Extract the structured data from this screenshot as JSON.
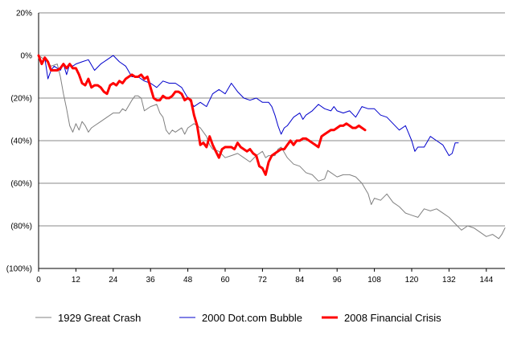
{
  "chart_data": {
    "type": "line",
    "title": "",
    "xlabel": "",
    "ylabel": "",
    "xlim": [
      0,
      150
    ],
    "ylim": [
      -100,
      20
    ],
    "x_ticks": [
      "0",
      "12",
      "24",
      "36",
      "48",
      "60",
      "72",
      "84",
      "96",
      "108",
      "120",
      "132",
      "144"
    ],
    "x_tick_values": [
      0,
      12,
      24,
      36,
      48,
      60,
      72,
      84,
      96,
      108,
      120,
      132,
      144
    ],
    "y_ticks": [
      "20%",
      "0%",
      "(20%)",
      "(40%)",
      "(60%)",
      "(80%)",
      "(100%)"
    ],
    "y_tick_values": [
      20,
      0,
      -20,
      -40,
      -60,
      -80,
      -100
    ],
    "grid": "horizontal",
    "legend_position": "bottom",
    "series": [
      {
        "name": "1929 Great Crash",
        "color": "#808080",
        "width": 1,
        "points": [
          [
            0,
            0
          ],
          [
            2,
            -2
          ],
          [
            4,
            -5
          ],
          [
            6,
            -4
          ],
          [
            7,
            -10
          ],
          [
            8,
            -18
          ],
          [
            9,
            -25
          ],
          [
            10,
            -33
          ],
          [
            11,
            -36
          ],
          [
            12,
            -32
          ],
          [
            13,
            -35
          ],
          [
            14,
            -31
          ],
          [
            15,
            -33
          ],
          [
            16,
            -36
          ],
          [
            17,
            -34
          ],
          [
            18,
            -33
          ],
          [
            20,
            -31
          ],
          [
            22,
            -29
          ],
          [
            24,
            -27
          ],
          [
            26,
            -27
          ],
          [
            27,
            -25
          ],
          [
            28,
            -26
          ],
          [
            30,
            -21
          ],
          [
            31,
            -19
          ],
          [
            32,
            -19
          ],
          [
            33,
            -20
          ],
          [
            34,
            -26
          ],
          [
            36,
            -24
          ],
          [
            38,
            -23
          ],
          [
            39,
            -27
          ],
          [
            40,
            -29
          ],
          [
            41,
            -35
          ],
          [
            42,
            -37
          ],
          [
            43,
            -35
          ],
          [
            44,
            -36
          ],
          [
            46,
            -34
          ],
          [
            47,
            -37
          ],
          [
            48,
            -34
          ],
          [
            50,
            -32
          ],
          [
            52,
            -34
          ],
          [
            54,
            -38
          ],
          [
            55,
            -42
          ],
          [
            56,
            -44
          ],
          [
            58,
            -45
          ],
          [
            60,
            -48
          ],
          [
            62,
            -47
          ],
          [
            64,
            -46
          ],
          [
            66,
            -48
          ],
          [
            68,
            -50
          ],
          [
            70,
            -47
          ],
          [
            72,
            -45
          ],
          [
            73,
            -48
          ],
          [
            74,
            -47
          ],
          [
            76,
            -47
          ],
          [
            77,
            -44
          ],
          [
            78,
            -43
          ],
          [
            80,
            -48
          ],
          [
            82,
            -51
          ],
          [
            84,
            -52
          ],
          [
            86,
            -55
          ],
          [
            88,
            -56
          ],
          [
            90,
            -59
          ],
          [
            92,
            -58
          ],
          [
            93,
            -54
          ],
          [
            94,
            -55
          ],
          [
            96,
            -57
          ],
          [
            98,
            -56
          ],
          [
            100,
            -56
          ],
          [
            102,
            -57
          ],
          [
            104,
            -60
          ],
          [
            106,
            -65
          ],
          [
            107,
            -70
          ],
          [
            108,
            -67
          ],
          [
            110,
            -68
          ],
          [
            112,
            -65
          ],
          [
            114,
            -69
          ],
          [
            116,
            -71
          ],
          [
            118,
            -74
          ],
          [
            120,
            -75
          ],
          [
            122,
            -76
          ],
          [
            124,
            -72
          ],
          [
            126,
            -73
          ],
          [
            128,
            -72
          ],
          [
            130,
            -74
          ],
          [
            132,
            -76
          ],
          [
            134,
            -79
          ],
          [
            136,
            -82
          ],
          [
            138,
            -80
          ],
          [
            140,
            -81
          ],
          [
            142,
            -83
          ],
          [
            144,
            -85
          ],
          [
            146,
            -84
          ],
          [
            148,
            -86
          ],
          [
            149,
            -84
          ],
          [
            150,
            -81
          ]
        ]
      },
      {
        "name": "2000 Dot.com Bubble",
        "color": "#0000cc",
        "width": 1,
        "points": [
          [
            0,
            0
          ],
          [
            1,
            -3
          ],
          [
            2,
            -1
          ],
          [
            3,
            -11
          ],
          [
            4,
            -7
          ],
          [
            5,
            -5
          ],
          [
            6,
            -6
          ],
          [
            7,
            -7
          ],
          [
            8,
            -4
          ],
          [
            9,
            -9
          ],
          [
            10,
            -4
          ],
          [
            11,
            -5
          ],
          [
            12,
            -4
          ],
          [
            14,
            -3
          ],
          [
            16,
            -2
          ],
          [
            18,
            -7
          ],
          [
            20,
            -4
          ],
          [
            22,
            -2
          ],
          [
            23,
            -1
          ],
          [
            24,
            0
          ],
          [
            26,
            -3
          ],
          [
            28,
            -5
          ],
          [
            30,
            -10
          ],
          [
            32,
            -10
          ],
          [
            34,
            -12
          ],
          [
            36,
            -13
          ],
          [
            38,
            -15
          ],
          [
            40,
            -12
          ],
          [
            42,
            -13
          ],
          [
            44,
            -13
          ],
          [
            46,
            -15
          ],
          [
            48,
            -20
          ],
          [
            50,
            -24
          ],
          [
            52,
            -22
          ],
          [
            54,
            -24
          ],
          [
            56,
            -18
          ],
          [
            58,
            -16
          ],
          [
            60,
            -18
          ],
          [
            62,
            -13
          ],
          [
            64,
            -17
          ],
          [
            66,
            -20
          ],
          [
            68,
            -21
          ],
          [
            70,
            -20
          ],
          [
            72,
            -22
          ],
          [
            74,
            -22
          ],
          [
            75,
            -24
          ],
          [
            76,
            -28
          ],
          [
            77,
            -33
          ],
          [
            78,
            -37
          ],
          [
            79,
            -34
          ],
          [
            80,
            -33
          ],
          [
            82,
            -29
          ],
          [
            84,
            -27
          ],
          [
            85,
            -30
          ],
          [
            86,
            -28
          ],
          [
            88,
            -26
          ],
          [
            90,
            -23
          ],
          [
            92,
            -25
          ],
          [
            94,
            -26
          ],
          [
            95,
            -24
          ],
          [
            96,
            -26
          ],
          [
            98,
            -27
          ],
          [
            100,
            -26
          ],
          [
            102,
            -29
          ],
          [
            104,
            -24
          ],
          [
            106,
            -25
          ],
          [
            108,
            -25
          ],
          [
            110,
            -28
          ],
          [
            112,
            -29
          ],
          [
            114,
            -32
          ],
          [
            116,
            -35
          ],
          [
            118,
            -33
          ],
          [
            120,
            -40
          ],
          [
            121,
            -45
          ],
          [
            122,
            -43
          ],
          [
            124,
            -43
          ],
          [
            126,
            -38
          ],
          [
            128,
            -40
          ],
          [
            130,
            -42
          ],
          [
            132,
            -47
          ],
          [
            133,
            -46
          ],
          [
            134,
            -41
          ],
          [
            135,
            -41
          ]
        ]
      },
      {
        "name": "2008 Financial Crisis",
        "color": "#ff0000",
        "width": 3,
        "points": [
          [
            0,
            0
          ],
          [
            1,
            -4
          ],
          [
            2,
            -1
          ],
          [
            3,
            -3
          ],
          [
            4,
            -7
          ],
          [
            5,
            -7
          ],
          [
            6,
            -7
          ],
          [
            7,
            -6
          ],
          [
            8,
            -4
          ],
          [
            9,
            -6
          ],
          [
            10,
            -4
          ],
          [
            11,
            -6
          ],
          [
            12,
            -6
          ],
          [
            13,
            -9
          ],
          [
            14,
            -13
          ],
          [
            15,
            -14
          ],
          [
            16,
            -11
          ],
          [
            17,
            -15
          ],
          [
            18,
            -14
          ],
          [
            19,
            -14
          ],
          [
            20,
            -15
          ],
          [
            21,
            -17
          ],
          [
            22,
            -18
          ],
          [
            23,
            -14
          ],
          [
            24,
            -13
          ],
          [
            25,
            -14
          ],
          [
            26,
            -12
          ],
          [
            27,
            -13
          ],
          [
            28,
            -11
          ],
          [
            29,
            -10
          ],
          [
            30,
            -9
          ],
          [
            31,
            -10
          ],
          [
            32,
            -10
          ],
          [
            33,
            -9
          ],
          [
            34,
            -11
          ],
          [
            35,
            -10
          ],
          [
            36,
            -15
          ],
          [
            37,
            -20
          ],
          [
            38,
            -21
          ],
          [
            39,
            -21
          ],
          [
            40,
            -19
          ],
          [
            41,
            -20
          ],
          [
            42,
            -20
          ],
          [
            43,
            -19
          ],
          [
            44,
            -17
          ],
          [
            45,
            -17
          ],
          [
            46,
            -18
          ],
          [
            47,
            -21
          ],
          [
            48,
            -20
          ],
          [
            49,
            -21
          ],
          [
            50,
            -28
          ],
          [
            51,
            -33
          ],
          [
            52,
            -42
          ],
          [
            53,
            -41
          ],
          [
            54,
            -43
          ],
          [
            55,
            -38
          ],
          [
            56,
            -42
          ],
          [
            57,
            -45
          ],
          [
            58,
            -48
          ],
          [
            59,
            -44
          ],
          [
            60,
            -43
          ],
          [
            61,
            -43
          ],
          [
            62,
            -43
          ],
          [
            63,
            -44
          ],
          [
            64,
            -41
          ],
          [
            65,
            -43
          ],
          [
            66,
            -44
          ],
          [
            67,
            -45
          ],
          [
            68,
            -44
          ],
          [
            69,
            -46
          ],
          [
            70,
            -47
          ],
          [
            71,
            -52
          ],
          [
            72,
            -53
          ],
          [
            73,
            -56
          ],
          [
            74,
            -50
          ],
          [
            75,
            -47
          ],
          [
            76,
            -46
          ],
          [
            77,
            -45
          ],
          [
            78,
            -44
          ],
          [
            79,
            -44
          ],
          [
            80,
            -42
          ],
          [
            81,
            -40
          ],
          [
            82,
            -42
          ],
          [
            83,
            -40
          ],
          [
            84,
            -40
          ],
          [
            85,
            -39
          ],
          [
            86,
            -39
          ],
          [
            87,
            -40
          ],
          [
            88,
            -41
          ],
          [
            89,
            -42
          ],
          [
            90,
            -43
          ],
          [
            91,
            -38
          ],
          [
            92,
            -37
          ],
          [
            93,
            -36
          ],
          [
            94,
            -35
          ],
          [
            95,
            -35
          ],
          [
            96,
            -34
          ],
          [
            97,
            -33
          ],
          [
            98,
            -33
          ],
          [
            99,
            -32
          ],
          [
            100,
            -33
          ],
          [
            101,
            -34
          ],
          [
            102,
            -34
          ],
          [
            103,
            -33
          ],
          [
            104,
            -34
          ],
          [
            105,
            -35
          ]
        ]
      }
    ]
  }
}
